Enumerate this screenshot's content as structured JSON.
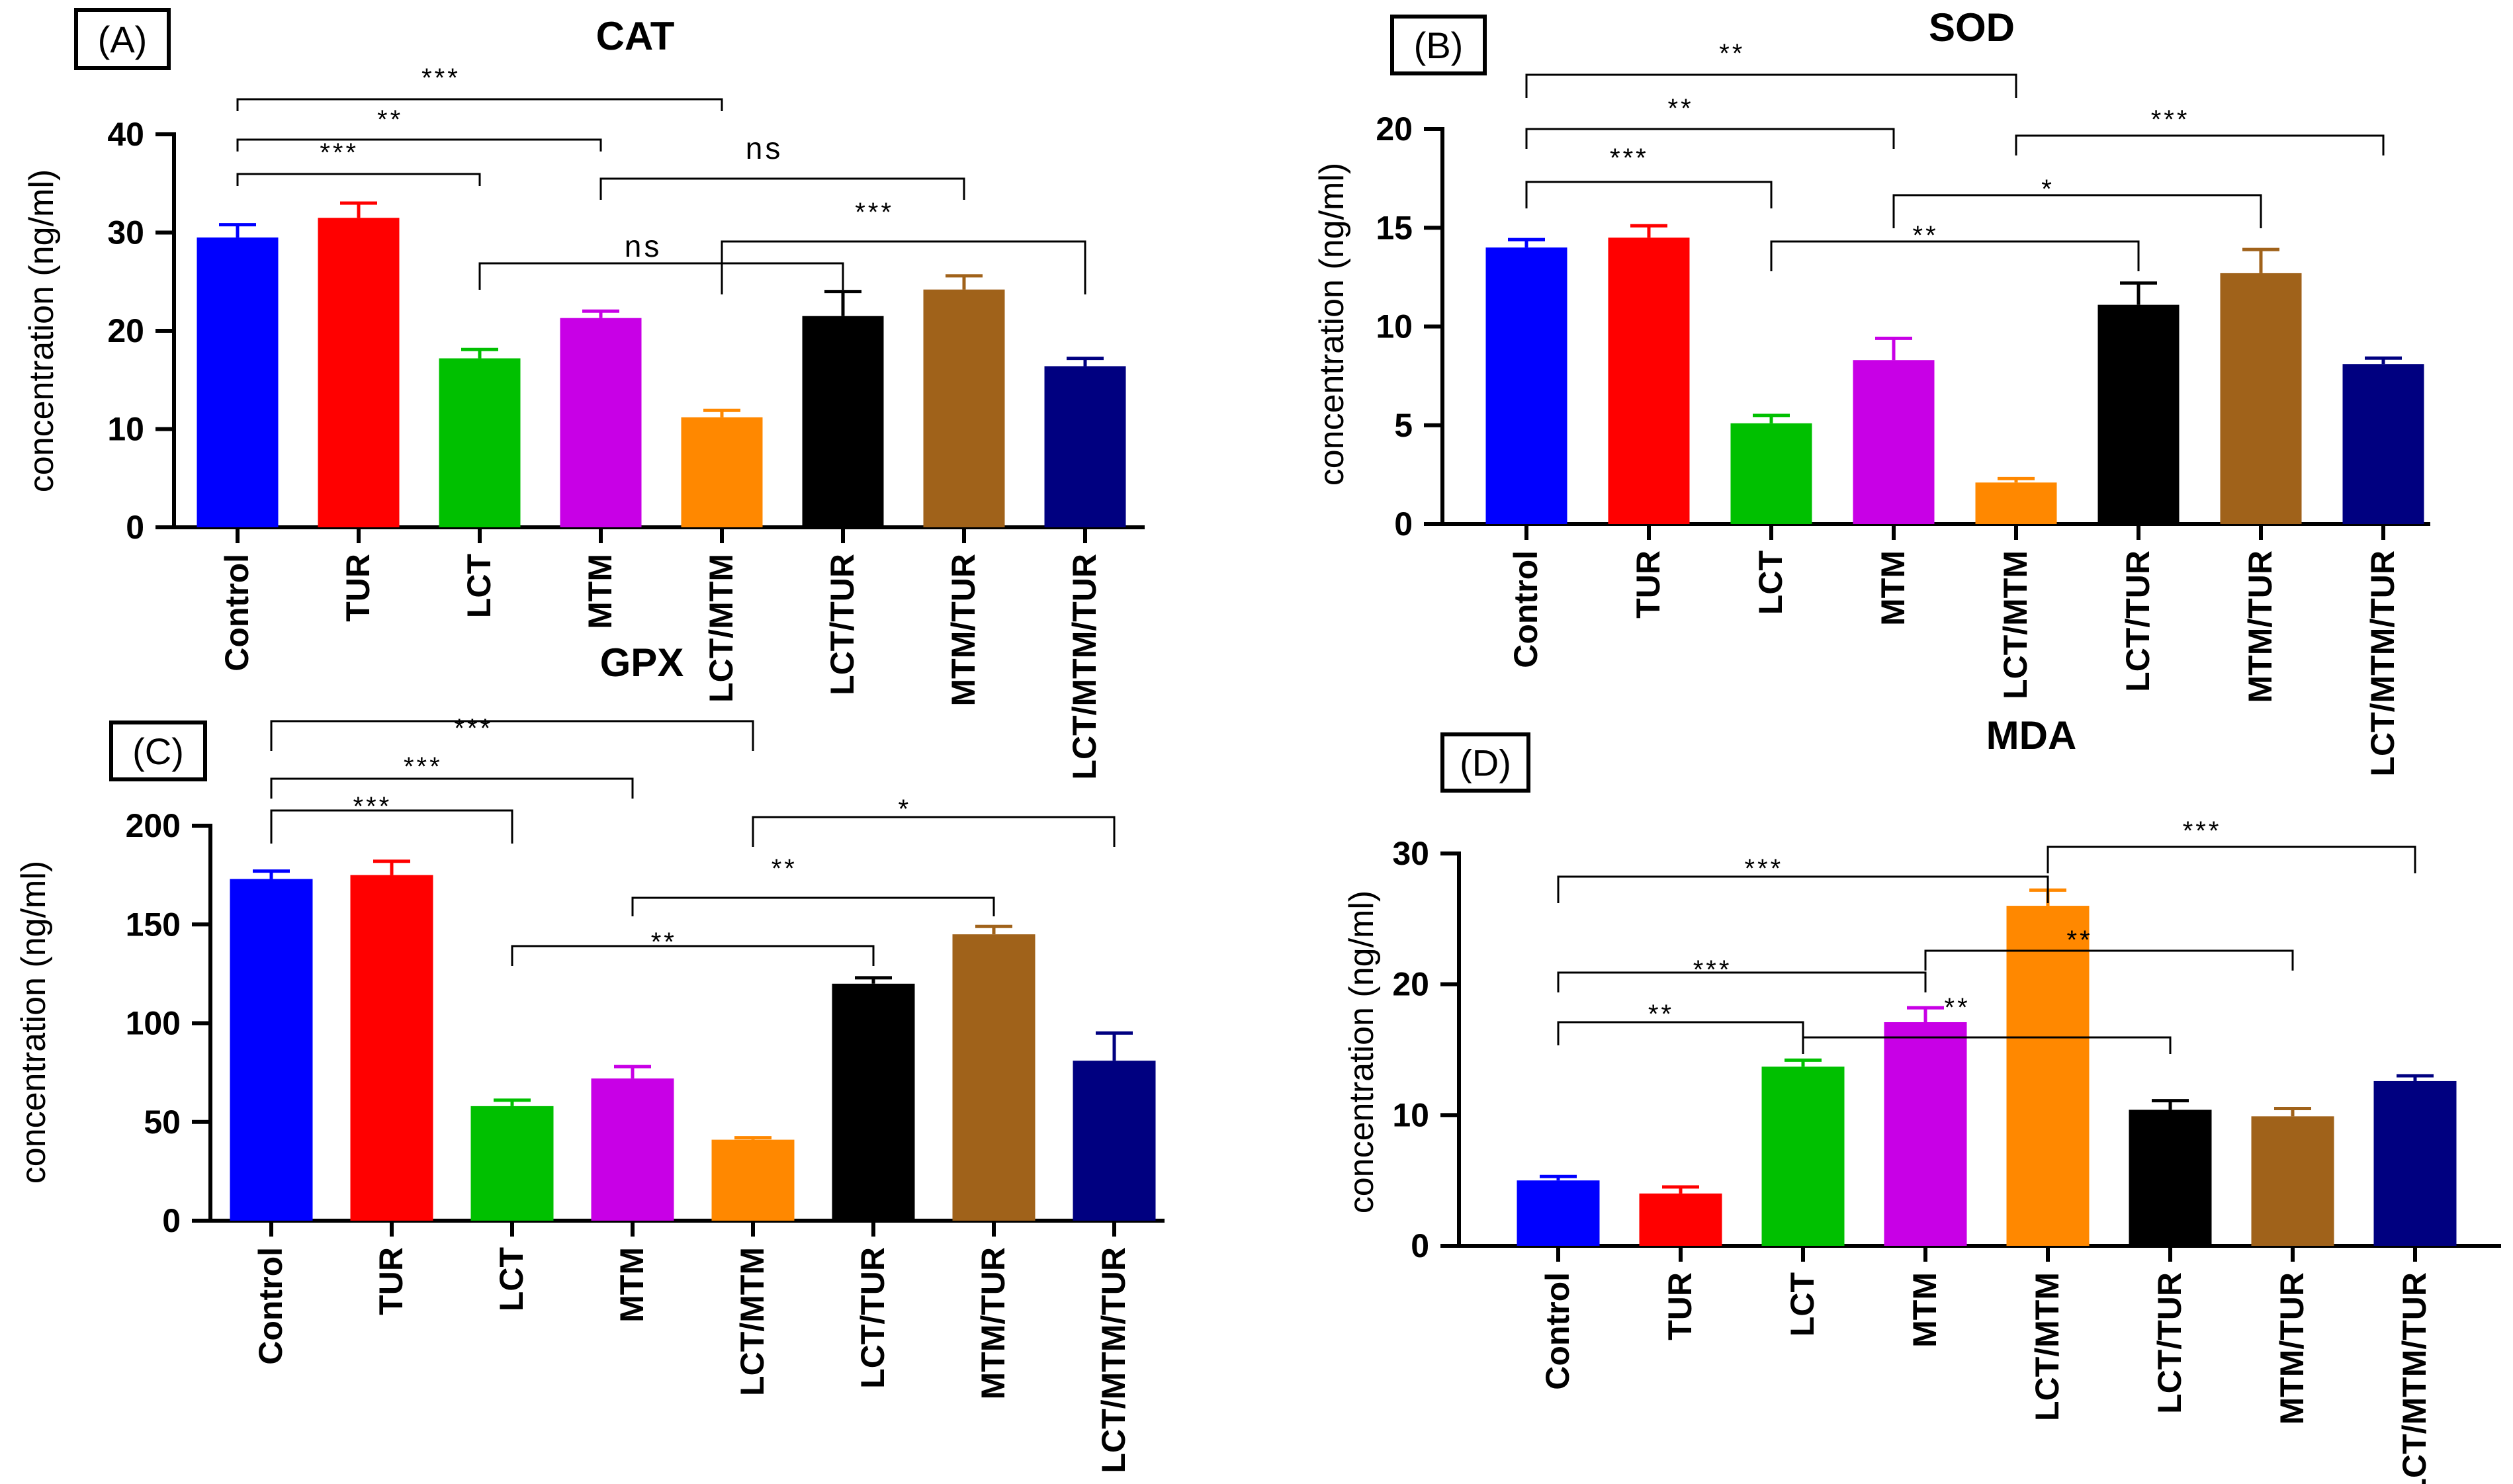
{
  "figure": {
    "categories": [
      "Control",
      "TUR",
      "LCT",
      "MTM",
      "LCT/MTM",
      "LCT/TUR",
      "MTM/TUR",
      "LCT/MTM/TUR"
    ],
    "colors": [
      "#0000ff",
      "#ff0000",
      "#00c000",
      "#c800e6",
      "#ff8800",
      "#000000",
      "#a0621a",
      "#000080"
    ]
  },
  "chart_data": [
    {
      "panel": "(A)",
      "type": "bar",
      "title": "CAT",
      "xlabel": "",
      "ylabel": "concentration (ng/ml)",
      "ylim": [
        0,
        40
      ],
      "yticks": [
        "0",
        "10",
        "20",
        "30",
        "40"
      ],
      "categories": [
        "Control",
        "TUR",
        "LCT",
        "MTM",
        "LCT/MTM",
        "LCT/TUR",
        "MTM/TUR",
        "LCT/MTM/TUR"
      ],
      "values": [
        29.5,
        31.5,
        17.2,
        21.3,
        11.2,
        21.5,
        24.2,
        16.4
      ],
      "errors": [
        1.3,
        1.5,
        0.9,
        0.7,
        0.7,
        2.5,
        1.4,
        0.8
      ],
      "significance": [
        {
          "from": "Control",
          "to": "LCT",
          "label": "***"
        },
        {
          "from": "Control",
          "to": "MTM",
          "label": "**"
        },
        {
          "from": "Control",
          "to": "LCT/MTM",
          "label": "***"
        },
        {
          "from": "LCT",
          "to": "LCT/TUR",
          "label": "ns"
        },
        {
          "from": "MTM",
          "to": "MTM/TUR",
          "label": "ns"
        },
        {
          "from": "LCT/MTM",
          "to": "LCT/MTM/TUR",
          "label": "***"
        }
      ]
    },
    {
      "panel": "(B)",
      "type": "bar",
      "title": "SOD",
      "xlabel": "",
      "ylabel": "concentration (ng/ml)",
      "ylim": [
        0,
        20
      ],
      "yticks": [
        "0",
        "5",
        "10",
        "15",
        "20"
      ],
      "categories": [
        "Control",
        "TUR",
        "LCT",
        "MTM",
        "LCT/MTM",
        "LCT/TUR",
        "MTM/TUR",
        "LCT/MTM/TUR"
      ],
      "values": [
        14.0,
        14.5,
        5.1,
        8.3,
        2.1,
        11.1,
        12.7,
        8.1
      ],
      "errors": [
        0.4,
        0.6,
        0.4,
        1.1,
        0.2,
        1.1,
        1.2,
        0.3
      ],
      "significance": [
        {
          "from": "Control",
          "to": "LCT",
          "label": "***"
        },
        {
          "from": "Control",
          "to": "MTM",
          "label": "**"
        },
        {
          "from": "Control",
          "to": "LCT/MTM",
          "label": "**"
        },
        {
          "from": "LCT",
          "to": "LCT/TUR",
          "label": "**"
        },
        {
          "from": "MTM",
          "to": "MTM/TUR",
          "label": "*"
        },
        {
          "from": "LCT/MTM",
          "to": "LCT/MTM/TUR",
          "label": "***"
        }
      ]
    },
    {
      "panel": "(C)",
      "type": "bar",
      "title": "GPX",
      "xlabel": "",
      "ylabel": "concentration (ng/ml)",
      "ylim": [
        0,
        200
      ],
      "yticks": [
        "0",
        "50",
        "100",
        "150",
        "200"
      ],
      "categories": [
        "Control",
        "TUR",
        "LCT",
        "MTM",
        "LCT/MTM",
        "LCT/TUR",
        "MTM/TUR",
        "LCT/MTM/TUR"
      ],
      "values": [
        173,
        175,
        58,
        72,
        41,
        120,
        145,
        81
      ],
      "errors": [
        4,
        7,
        3,
        6,
        1,
        3,
        4,
        14
      ],
      "significance": [
        {
          "from": "Control",
          "to": "LCT",
          "label": "***"
        },
        {
          "from": "Control",
          "to": "MTM",
          "label": "***"
        },
        {
          "from": "Control",
          "to": "LCT/MTM",
          "label": "***"
        },
        {
          "from": "LCT",
          "to": "LCT/TUR",
          "label": "**"
        },
        {
          "from": "MTM",
          "to": "MTM/TUR",
          "label": "**"
        },
        {
          "from": "LCT/MTM",
          "to": "LCT/MTM/TUR",
          "label": "*"
        }
      ]
    },
    {
      "panel": "(D)",
      "type": "bar",
      "title": "MDA",
      "xlabel": "",
      "ylabel": "concentration (ng/ml)",
      "ylim": [
        0,
        30
      ],
      "yticks": [
        "0",
        "10",
        "20",
        "30"
      ],
      "categories": [
        "Control",
        "TUR",
        "LCT",
        "MTM",
        "LCT/MTM",
        "LCT/TUR",
        "MTM/TUR",
        "LCT/MTM/TUR"
      ],
      "values": [
        5.0,
        4.0,
        13.7,
        17.1,
        26.0,
        10.4,
        9.9,
        12.6
      ],
      "errors": [
        0.3,
        0.5,
        0.5,
        1.1,
        1.2,
        0.7,
        0.6,
        0.4
      ],
      "significance": [
        {
          "from": "Control",
          "to": "LCT",
          "label": "**"
        },
        {
          "from": "Control",
          "to": "MTM",
          "label": "***"
        },
        {
          "from": "Control",
          "to": "LCT/MTM",
          "label": "***"
        },
        {
          "from": "LCT",
          "to": "LCT/TUR",
          "label": "**"
        },
        {
          "from": "MTM",
          "to": "MTM/TUR",
          "label": "**"
        },
        {
          "from": "LCT/MTM",
          "to": "LCT/MTM/TUR",
          "label": "***"
        }
      ]
    }
  ]
}
